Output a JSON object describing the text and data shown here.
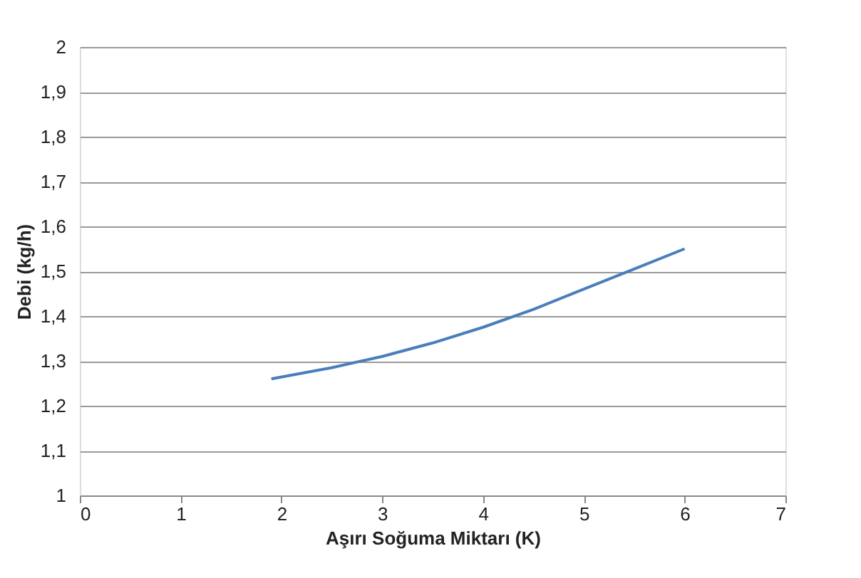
{
  "chart_data": {
    "type": "line",
    "xlabel": "Aşırı Soğuma Miktarı (K)",
    "ylabel": "Debi (kg/h)",
    "x": [
      1.9,
      2.5,
      3.0,
      3.5,
      4.0,
      4.5,
      5.0,
      5.5,
      6.0
    ],
    "series": [
      {
        "color": "#4a7ebb",
        "values": [
          1.26,
          1.285,
          1.31,
          1.34,
          1.375,
          1.415,
          1.46,
          1.505,
          1.55
        ]
      }
    ],
    "xlim": [
      0,
      7
    ],
    "xticks": [
      0,
      1,
      2,
      3,
      4,
      5,
      6,
      7
    ],
    "ylim": [
      1,
      2
    ],
    "yticks": [
      1,
      {
        "value": 1.1,
        "label": "1,1"
      },
      {
        "value": 1.2,
        "label": "1,2"
      },
      {
        "value": 1.3,
        "label": "1,3"
      },
      {
        "value": 1.4,
        "label": "1,4"
      },
      {
        "value": 1.5,
        "label": "1,5"
      },
      {
        "value": 1.6,
        "label": "1,6"
      },
      {
        "value": 1.7,
        "label": "1,7"
      },
      {
        "value": 1.8,
        "label": "1,8"
      },
      {
        "value": 1.9,
        "label": "1,9"
      },
      2
    ],
    "grid": "y",
    "marker": "none",
    "line_style": "solid"
  }
}
